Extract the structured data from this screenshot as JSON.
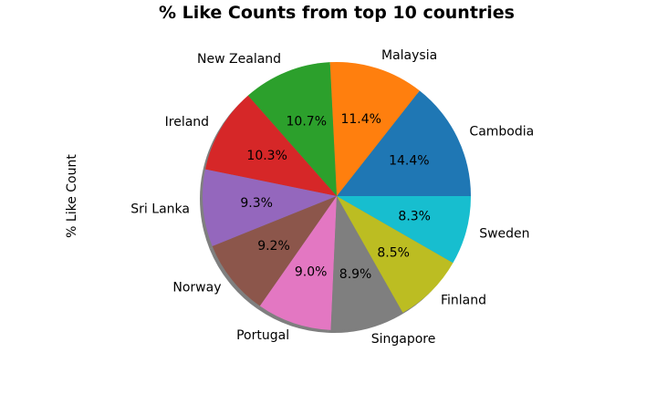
{
  "chart_data": {
    "type": "pie",
    "title": "% Like Counts from top 10 countries",
    "ylabel": "% Like Count",
    "categories": [
      "Cambodia",
      "Malaysia",
      "New Zealand",
      "Ireland",
      "Sri Lanka",
      "Norway",
      "Portugal",
      "Singapore",
      "Finland",
      "Sweden"
    ],
    "values": [
      14.4,
      11.4,
      10.7,
      10.3,
      9.3,
      9.2,
      9.0,
      8.9,
      8.5,
      8.3
    ],
    "labels_pct": [
      "14.4%",
      "11.4%",
      "10.7%",
      "10.3%",
      "9.3%",
      "9.2%",
      "9.0%",
      "8.9%",
      "8.5%",
      "8.3%"
    ],
    "colors": [
      "#1f77b4",
      "#ff7f0e",
      "#2ca02c",
      "#d62728",
      "#9467bd",
      "#8c564b",
      "#e377c2",
      "#7f7f7f",
      "#bcbd22",
      "#17becf"
    ],
    "start_angle_deg": 0,
    "direction": "counterclockwise",
    "shadow": true,
    "legend": "none"
  }
}
